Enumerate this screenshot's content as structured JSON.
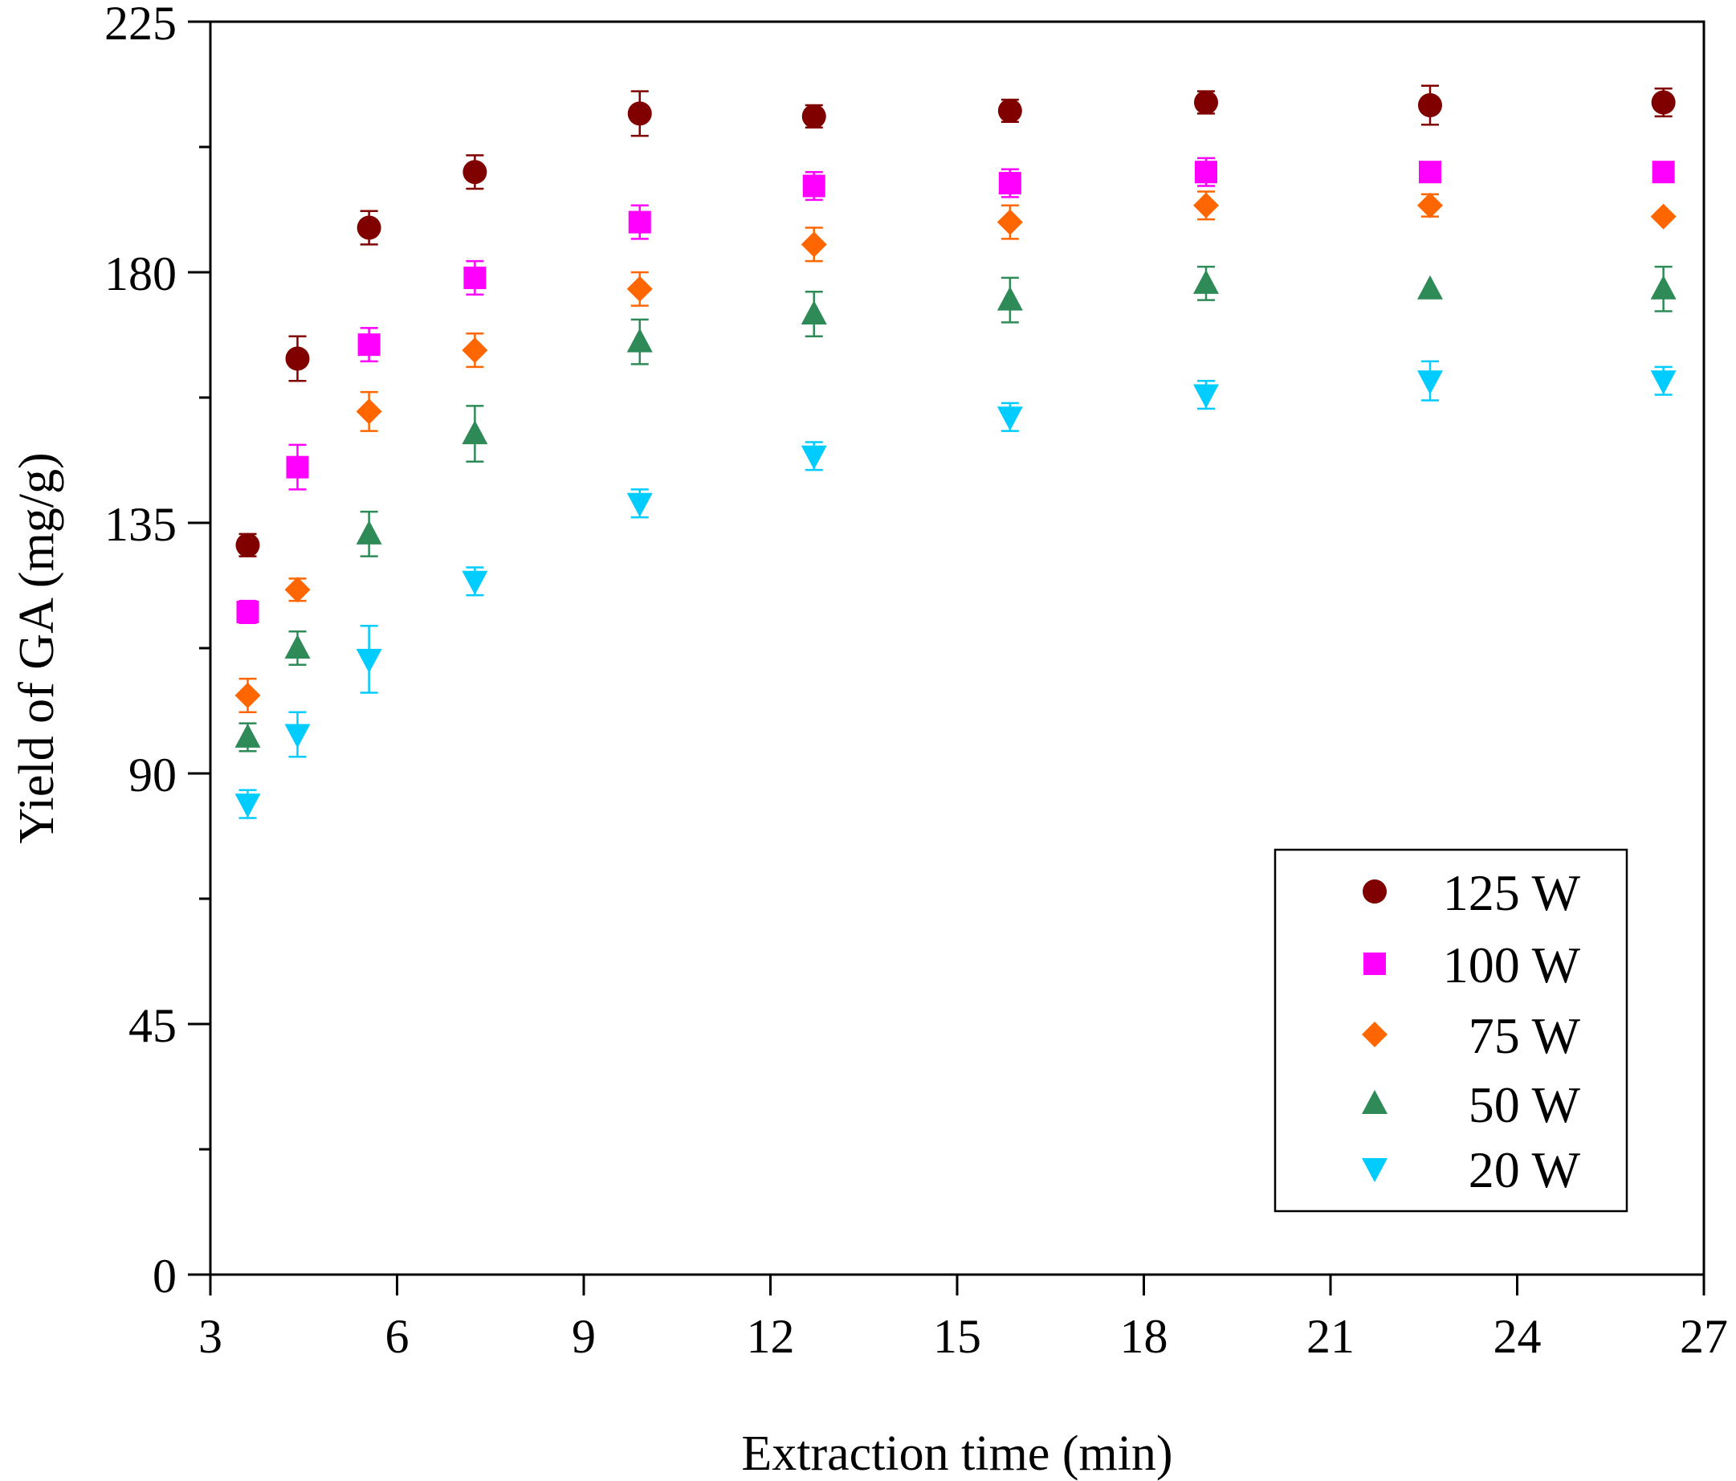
{
  "chart_data": {
    "type": "scatter",
    "title": "",
    "xlabel": "Extraction time (min)",
    "ylabel": "Yield of GA (mg/g)",
    "xlim": [
      3,
      27
    ],
    "ylim": [
      0,
      225
    ],
    "xticks": [
      3,
      6,
      9,
      12,
      15,
      18,
      21,
      24,
      27
    ],
    "yticks": [
      0,
      45,
      90,
      135,
      180,
      225
    ],
    "y_minor_ticks": [
      22.5,
      67.5,
      112.5,
      157.5,
      202.5
    ],
    "grid": false,
    "legend_position": "bottom-right",
    "series": [
      {
        "name": "125 W",
        "marker": "circle",
        "color": "#800000",
        "points": [
          {
            "x": 3.6,
            "y": 131,
            "err": 2
          },
          {
            "x": 4.4,
            "y": 164.5,
            "err": 4
          },
          {
            "x": 5.55,
            "y": 188,
            "err": 3
          },
          {
            "x": 7.25,
            "y": 198,
            "err": 3
          },
          {
            "x": 9.9,
            "y": 208.5,
            "err": 4
          },
          {
            "x": 12.7,
            "y": 208,
            "err": 2
          },
          {
            "x": 15.85,
            "y": 209,
            "err": 2
          },
          {
            "x": 19.0,
            "y": 210.5,
            "err": 2
          },
          {
            "x": 22.6,
            "y": 210,
            "err": 3.5
          },
          {
            "x": 26.35,
            "y": 210.5,
            "err": 2.5
          }
        ]
      },
      {
        "name": "100 W",
        "marker": "square",
        "color": "#ff00ff",
        "points": [
          {
            "x": 3.6,
            "y": 119,
            "err": 2
          },
          {
            "x": 4.4,
            "y": 145,
            "err": 4
          },
          {
            "x": 5.55,
            "y": 167,
            "err": 3
          },
          {
            "x": 7.25,
            "y": 179,
            "err": 3
          },
          {
            "x": 9.9,
            "y": 189,
            "err": 3
          },
          {
            "x": 12.7,
            "y": 195.5,
            "err": 2.5
          },
          {
            "x": 15.85,
            "y": 196,
            "err": 2.5
          },
          {
            "x": 19.0,
            "y": 198,
            "err": 2.5
          },
          {
            "x": 22.6,
            "y": 198,
            "err": 0
          },
          {
            "x": 26.35,
            "y": 198,
            "err": 0
          }
        ]
      },
      {
        "name": "75 W",
        "marker": "diamond",
        "color": "#ff6600",
        "points": [
          {
            "x": 3.6,
            "y": 104,
            "err": 3
          },
          {
            "x": 4.4,
            "y": 123,
            "err": 2
          },
          {
            "x": 5.55,
            "y": 155,
            "err": 3.5
          },
          {
            "x": 7.25,
            "y": 166,
            "err": 3
          },
          {
            "x": 9.9,
            "y": 177,
            "err": 3
          },
          {
            "x": 12.7,
            "y": 185,
            "err": 3
          },
          {
            "x": 15.85,
            "y": 189,
            "err": 3
          },
          {
            "x": 19.0,
            "y": 192,
            "err": 2.5
          },
          {
            "x": 22.6,
            "y": 192,
            "err": 2
          },
          {
            "x": 26.35,
            "y": 190,
            "err": 0
          }
        ]
      },
      {
        "name": "50 W",
        "marker": "triangle-up",
        "color": "#2e8b57",
        "points": [
          {
            "x": 3.6,
            "y": 96.5,
            "err": 2.5
          },
          {
            "x": 4.4,
            "y": 112.5,
            "err": 3
          },
          {
            "x": 5.55,
            "y": 133,
            "err": 4
          },
          {
            "x": 7.25,
            "y": 151,
            "err": 5
          },
          {
            "x": 9.9,
            "y": 167.5,
            "err": 4
          },
          {
            "x": 12.7,
            "y": 172.5,
            "err": 4
          },
          {
            "x": 15.85,
            "y": 175,
            "err": 4
          },
          {
            "x": 19.0,
            "y": 178,
            "err": 3
          },
          {
            "x": 22.6,
            "y": 177,
            "err": 0
          },
          {
            "x": 26.35,
            "y": 177,
            "err": 4
          }
        ]
      },
      {
        "name": "20 W",
        "marker": "triangle-down",
        "color": "#00ccff",
        "points": [
          {
            "x": 3.6,
            "y": 84.5,
            "err": 2.5
          },
          {
            "x": 4.4,
            "y": 97,
            "err": 4
          },
          {
            "x": 5.55,
            "y": 110.5,
            "err": 6
          },
          {
            "x": 7.25,
            "y": 124.5,
            "err": 2.5
          },
          {
            "x": 9.9,
            "y": 138.5,
            "err": 2.5
          },
          {
            "x": 12.7,
            "y": 147,
            "err": 2.5
          },
          {
            "x": 15.85,
            "y": 154,
            "err": 2.5
          },
          {
            "x": 19.0,
            "y": 158,
            "err": 2.5
          },
          {
            "x": 22.6,
            "y": 160.5,
            "err": 3.5
          },
          {
            "x": 26.35,
            "y": 160.5,
            "err": 2.5
          }
        ]
      }
    ]
  }
}
